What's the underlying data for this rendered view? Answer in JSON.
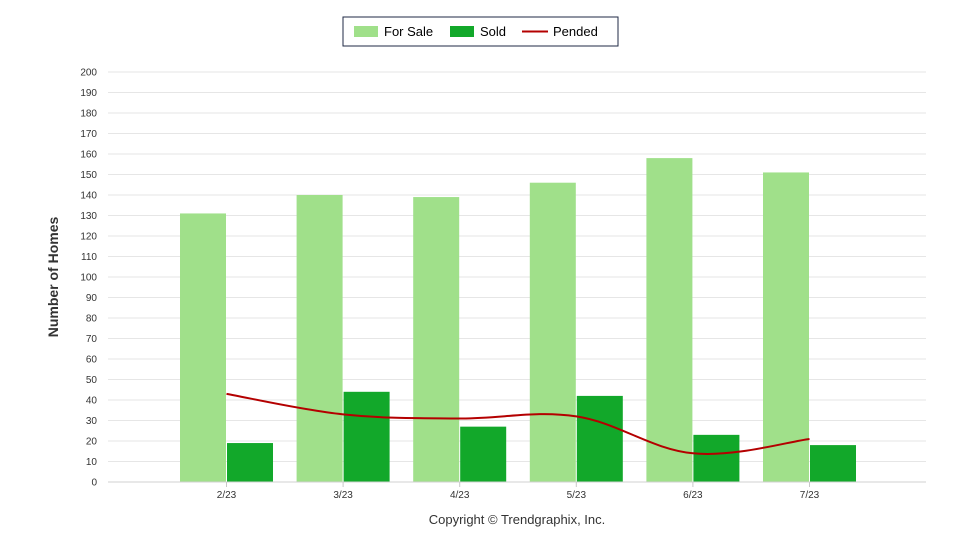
{
  "chart_data": {
    "type": "bar",
    "categories": [
      "2/23",
      "3/23",
      "4/23",
      "5/23",
      "6/23",
      "7/23"
    ],
    "series": [
      {
        "name": "For Sale",
        "type": "bar",
        "color": "#a0e08a",
        "values": [
          131,
          140,
          139,
          146,
          158,
          151
        ]
      },
      {
        "name": "Sold",
        "type": "bar",
        "color": "#12a82a",
        "values": [
          19,
          44,
          27,
          42,
          23,
          18
        ]
      },
      {
        "name": "Pended",
        "type": "line",
        "color": "#b40000",
        "values": [
          43,
          33,
          31,
          32,
          14,
          21
        ]
      }
    ],
    "ylabel": "Number of Homes",
    "ylim": [
      0,
      200
    ],
    "yticks": [
      0,
      10,
      20,
      30,
      40,
      50,
      60,
      70,
      80,
      90,
      100,
      110,
      120,
      130,
      140,
      150,
      160,
      170,
      180,
      190,
      200
    ],
    "grid": true,
    "legend_position": "top-center"
  },
  "footer": {
    "copyright": "Copyright © Trendgraphix, Inc."
  }
}
